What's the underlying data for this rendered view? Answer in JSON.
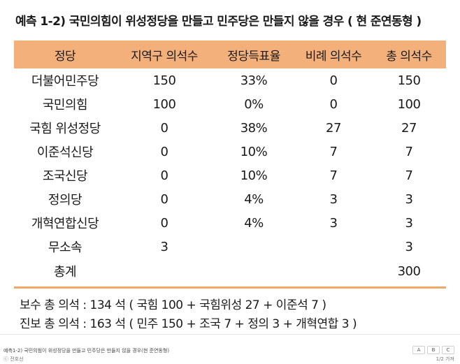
{
  "title": "예측 1-2) 국민의힘이 위성정당을 만들고 민주당은 만들지 않을 경우 ( 현 준연동형 )",
  "table": {
    "headers": [
      "정당",
      "지역구 의석수",
      "정당득표율",
      "비례 의석수",
      "총 의석수"
    ],
    "rows": [
      [
        "더불어민주당",
        "150",
        "33%",
        "0",
        "150"
      ],
      [
        "국민의힘",
        "100",
        "0%",
        "0",
        "100"
      ],
      [
        "국힘 위성정당",
        "0",
        "38%",
        "27",
        "27"
      ],
      [
        "이준석신당",
        "0",
        "10%",
        "7",
        "7"
      ],
      [
        "조국신당",
        "0",
        "10%",
        "7",
        "7"
      ],
      [
        "정의당",
        "0",
        "4%",
        "3",
        "3"
      ],
      [
        "개혁연합신당",
        "0",
        "4%",
        "3",
        "3"
      ],
      [
        "무소속",
        "3",
        "",
        "",
        "3"
      ],
      [
        "총계",
        "",
        "",
        "",
        "300"
      ]
    ]
  },
  "summary": {
    "conservative": "보수 총 의석 : 134 석 ( 국힘 100 + 국힘위성 27 + 이준석 7 )",
    "progressive": "진보 총 의석 : 163 석 ( 민주 150 + 조국 7 + 정의 3 + 개혁연합 3 )"
  },
  "caption": {
    "text": "예측1-2) 국민의힘이 위성정당을 만들고 민주당은 만들지 않을 경우(현 준연동형)",
    "credit": "ⓒ 전호선",
    "tools": [
      "A",
      "B",
      "C"
    ],
    "zoom_note": "1/2 가져"
  },
  "colors": {
    "header_bg": "#f4b07a",
    "rule": "#f0a868"
  }
}
